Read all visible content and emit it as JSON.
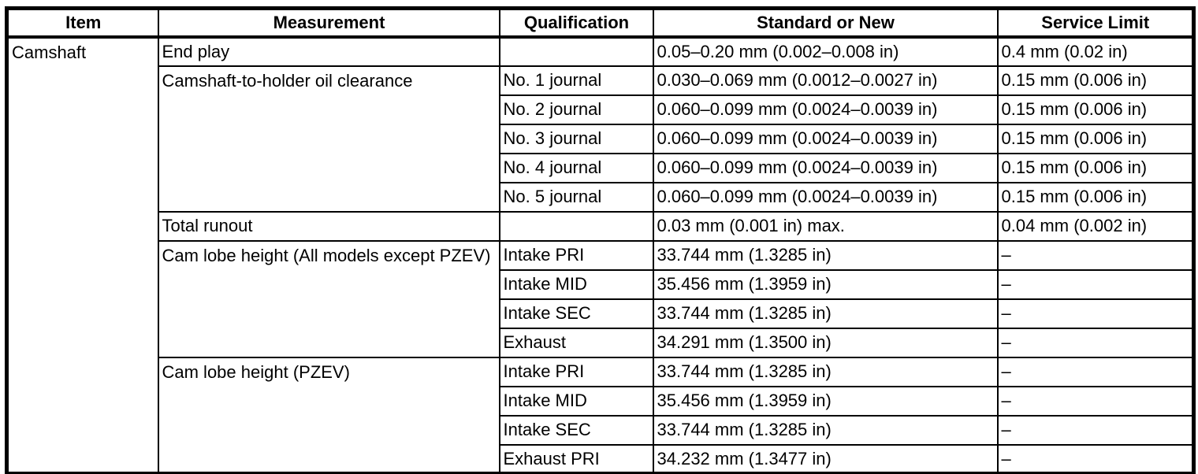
{
  "table": {
    "headers": [
      "Item",
      "Measurement",
      "Qualification",
      "Standard or New",
      "Service Limit"
    ],
    "item": "Camshaft",
    "rows": [
      {
        "measurement": "End play",
        "qualification": "",
        "standard": "0.05–0.20 mm (0.002–0.008 in)",
        "service_limit": "0.4 mm (0.02 in)"
      },
      {
        "measurement": "Camshaft-to-holder oil clearance",
        "qualification": "No. 1 journal",
        "standard": "0.030–0.069 mm (0.0012–0.0027 in)",
        "service_limit": "0.15 mm (0.006 in)"
      },
      {
        "qualification": "No. 2 journal",
        "standard": "0.060–0.099 mm (0.0024–0.0039 in)",
        "service_limit": "0.15 mm (0.006 in)"
      },
      {
        "qualification": "No. 3 journal",
        "standard": "0.060–0.099 mm (0.0024–0.0039 in)",
        "service_limit": "0.15 mm (0.006 in)"
      },
      {
        "qualification": "No. 4 journal",
        "standard": "0.060–0.099 mm (0.0024–0.0039 in)",
        "service_limit": "0.15 mm (0.006 in)"
      },
      {
        "qualification": "No. 5 journal",
        "standard": "0.060–0.099 mm (0.0024–0.0039 in)",
        "service_limit": "0.15 mm (0.006 in)"
      },
      {
        "measurement": "Total runout",
        "qualification": "",
        "standard": "0.03 mm (0.001 in) max.",
        "service_limit": "0.04 mm (0.002 in)"
      },
      {
        "measurement": "Cam lobe height (All models except PZEV)",
        "qualification": "Intake PRI",
        "standard": "33.744 mm (1.3285 in)",
        "service_limit": "–"
      },
      {
        "qualification": "Intake MID",
        "standard": "35.456 mm (1.3959 in)",
        "service_limit": "–"
      },
      {
        "qualification": "Intake SEC",
        "standard": "33.744 mm (1.3285 in)",
        "service_limit": "–"
      },
      {
        "qualification": "Exhaust",
        "standard": "34.291 mm (1.3500 in)",
        "service_limit": "–"
      },
      {
        "measurement": "Cam lobe height (PZEV)",
        "qualification": "Intake PRI",
        "standard": "33.744 mm (1.3285 in)",
        "service_limit": "–"
      },
      {
        "qualification": "Intake MID",
        "standard": "35.456 mm (1.3959 in)",
        "service_limit": "–"
      },
      {
        "qualification": "Intake SEC",
        "standard": "33.744 mm (1.3285 in)",
        "service_limit": "–"
      },
      {
        "qualification": "Exhaust PRI",
        "standard": "34.232 mm (1.3477 in)",
        "service_limit": "–"
      }
    ]
  }
}
